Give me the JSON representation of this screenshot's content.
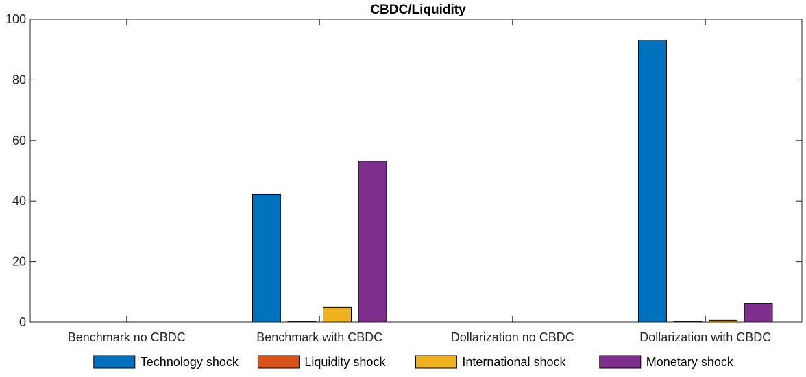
{
  "chart_data": {
    "type": "bar",
    "title": "CBDC/Liquidity",
    "xlabel": "",
    "ylabel": "",
    "ylim": [
      0,
      100
    ],
    "yticks": [
      "0",
      "20",
      "40",
      "60",
      "80",
      "100"
    ],
    "categories": [
      "Benchmark no CBDC",
      "Benchmark with CBDC",
      "Dollarization no CBDC",
      "Dollarization with CBDC"
    ],
    "series": [
      {
        "name": "Technology shock",
        "color": "#0072BD",
        "values": [
          0,
          42.2,
          0,
          93.1
        ]
      },
      {
        "name": "Liquidity shock",
        "color": "#D95319",
        "values": [
          0,
          0.1,
          0,
          0.1
        ]
      },
      {
        "name": "International shock",
        "color": "#EDB120",
        "values": [
          0,
          4.9,
          0,
          0.6
        ]
      },
      {
        "name": "Monetary shock",
        "color": "#7E2F8E",
        "values": [
          0,
          53.0,
          0,
          6.2
        ]
      }
    ],
    "grid": false,
    "legend_position": "bottom"
  }
}
